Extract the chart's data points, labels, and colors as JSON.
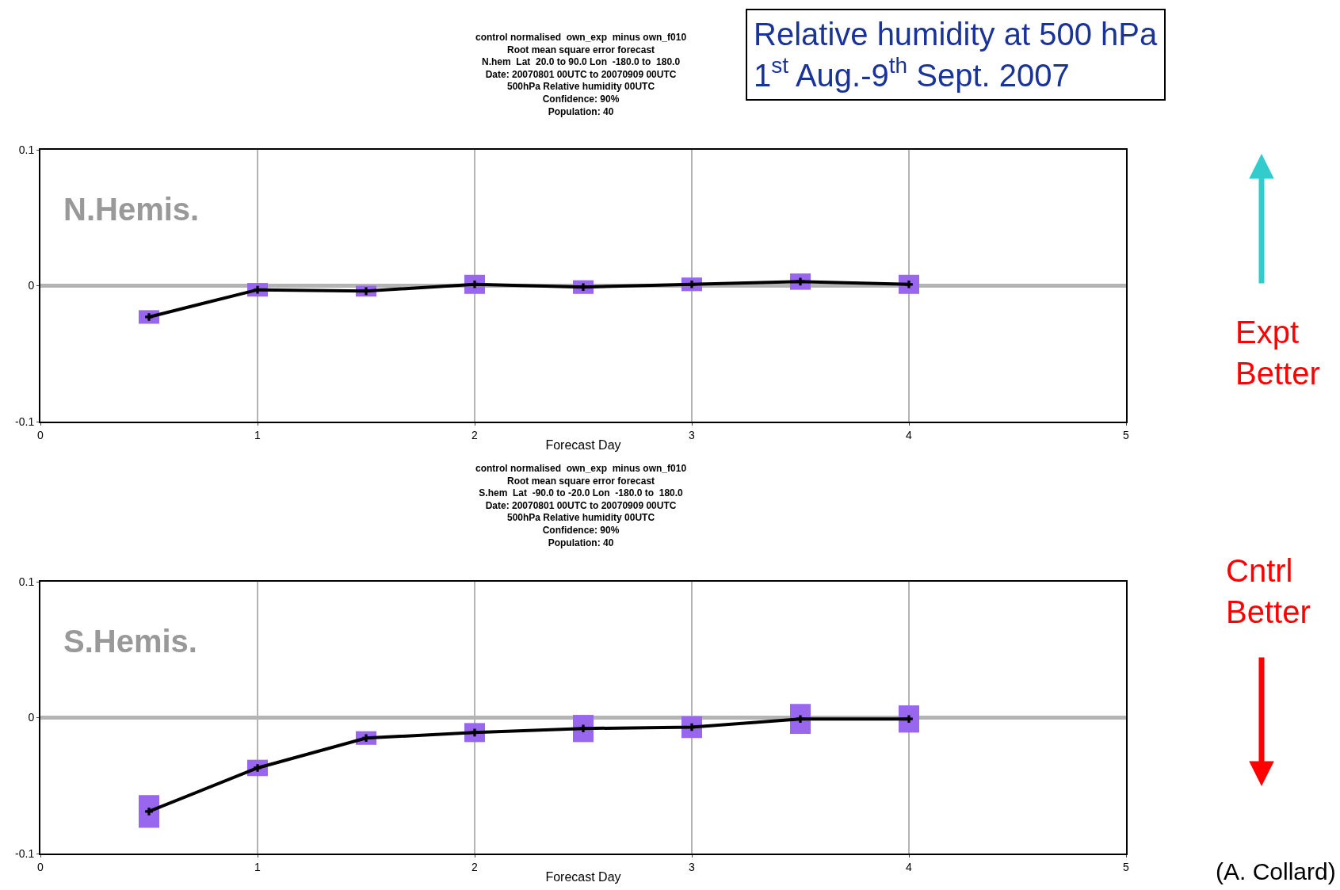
{
  "chart_data": [
    {
      "type": "line",
      "title": "control normalised  own_exp  minus own_f010\nRoot mean square error forecast\nN.hem  Lat  20.0 to 90.0 Lon  -180.0 to  180.0\nDate: 20070801 00UTC to 20070909 00UTC\n500hPa Relative humidity 00UTC\nConfidence: 90%\nPopulation: 40",
      "xlabel": "Forecast Day",
      "x": [
        0.5,
        1,
        1.5,
        2,
        2.5,
        3,
        3.5,
        4
      ],
      "series": [
        {
          "color": "#000000",
          "values": [
            -0.023,
            -0.003,
            -0.004,
            0.001,
            -0.001,
            0.001,
            0.003,
            0.001
          ],
          "errors": [
            0.005,
            0.005,
            0.004,
            0.007,
            0.005,
            0.005,
            0.006,
            0.007
          ]
        }
      ],
      "xlim": [
        0,
        5
      ],
      "xticks": [
        0,
        1,
        2,
        3,
        4,
        5
      ],
      "ylim": [
        -0.1,
        0.1
      ],
      "yticks": [
        -0.1,
        0,
        0.1
      ],
      "grid": "x",
      "marker": "cross",
      "ref_lines": [
        {
          "axis": "y",
          "value": 0,
          "color": "#b4b4b4"
        }
      ],
      "annotations": [
        "N.Hemis."
      ]
    },
    {
      "type": "line",
      "title": "control normalised  own_exp  minus own_f010\nRoot mean square error forecast\nS.hem  Lat  -90.0 to -20.0 Lon  -180.0 to  180.0\nDate: 20070801 00UTC to 20070909 00UTC\n500hPa Relative humidity 00UTC\nConfidence: 90%\nPopulation: 40",
      "xlabel": "Forecast Day",
      "x": [
        0.5,
        1,
        1.5,
        2,
        2.5,
        3,
        3.5,
        4
      ],
      "series": [
        {
          "color": "#000000",
          "values": [
            -0.069,
            -0.037,
            -0.015,
            -0.011,
            -0.008,
            -0.007,
            -0.001,
            -0.001
          ],
          "errors": [
            0.012,
            0.006,
            0.005,
            0.007,
            0.01,
            0.008,
            0.011,
            0.01
          ]
        }
      ],
      "xlim": [
        0,
        5
      ],
      "xticks": [
        0,
        1,
        2,
        3,
        4,
        5
      ],
      "ylim": [
        -0.1,
        0.1
      ],
      "yticks": [
        -0.1,
        0,
        0.1
      ],
      "grid": "x",
      "ref_lines": [
        {
          "axis": "y",
          "value": 0,
          "color": "#b4b4b4"
        }
      ],
      "marker": "cross",
      "annotations": [
        "S.Hemis."
      ]
    },
    {
      "type": "other",
      "title": "Relative humidity at 500 hPa\n1$^{st}$ Aug.-9$^{th}$ Sept. 2007",
      "annotations": [
        "Expt\nBetter",
        "Cntrl\nBetter",
        "(A. Collard)"
      ]
    }
  ]
}
